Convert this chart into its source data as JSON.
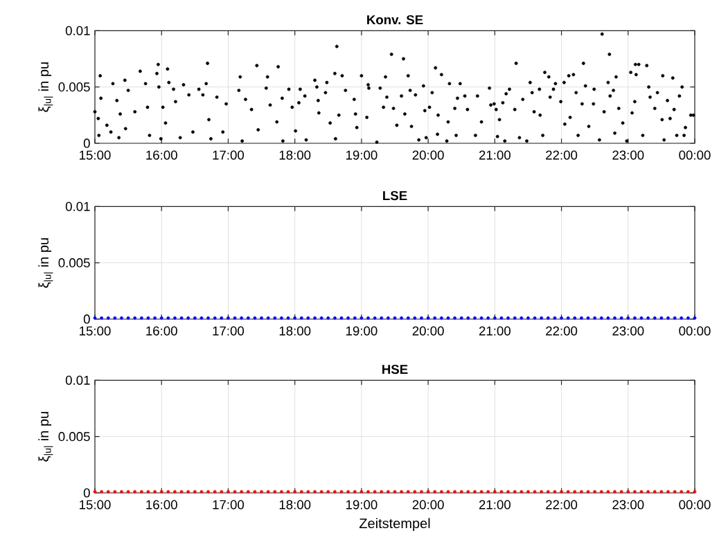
{
  "chart_data": [
    {
      "type": "scatter",
      "title": "Konv. SE",
      "ylabel": "ξ$_{|u|}$ in pu",
      "xlim": [
        15,
        24
      ],
      "ylim": [
        0,
        0.01
      ],
      "yticks": [
        0,
        0.005,
        0.01
      ],
      "grid": true,
      "marker": "circle",
      "color": "#000000",
      "xticks": [
        {
          "value": 15,
          "label": "15:00"
        },
        {
          "value": 16,
          "label": "16:00"
        },
        {
          "value": 17,
          "label": "17:00"
        },
        {
          "value": 18,
          "label": "18:00"
        },
        {
          "value": 19,
          "label": "19:00"
        },
        {
          "value": 20,
          "label": "20:00"
        },
        {
          "value": 21,
          "label": "21:00"
        },
        {
          "value": 22,
          "label": "22:00"
        },
        {
          "value": 23,
          "label": "23:00"
        },
        {
          "value": 24,
          "label": "00:00"
        }
      ],
      "x": [
        15.0,
        15.08,
        15.09,
        15.06,
        15.05,
        15.18,
        15.27,
        15.33,
        15.24,
        15.38,
        15.45,
        15.46,
        15.36,
        15.5,
        15.6,
        15.68,
        15.76,
        15.79,
        15.82,
        15.95,
        15.93,
        15.96,
        15.99,
        16.02,
        16.09,
        16.11,
        16.06,
        16.18,
        16.21,
        16.33,
        16.28,
        16.41,
        16.47,
        16.56,
        16.69,
        16.67,
        16.62,
        16.71,
        16.74,
        16.83,
        16.97,
        16.92,
        17.18,
        17.16,
        17.21,
        17.26,
        17.35,
        17.43,
        17.45,
        17.59,
        17.57,
        17.63,
        17.75,
        17.73,
        17.81,
        17.82,
        17.91,
        17.96,
        18.01,
        18.08,
        18.06,
        18.15,
        18.17,
        18.3,
        18.33,
        18.35,
        18.36,
        18.48,
        18.46,
        18.53,
        18.6,
        18.63,
        18.71,
        18.76,
        18.66,
        18.61,
        18.89,
        18.91,
        18.93,
        19.0,
        19.1,
        19.11,
        19.08,
        19.23,
        19.28,
        19.33,
        19.36,
        19.38,
        19.45,
        19.48,
        19.53,
        19.63,
        19.6,
        19.7,
        19.65,
        19.73,
        19.81,
        19.75,
        19.86,
        19.93,
        19.95,
        19.97,
        20.02,
        20.06,
        20.11,
        20.2,
        20.15,
        20.14,
        20.32,
        20.3,
        20.28,
        20.48,
        20.44,
        20.4,
        20.42,
        20.55,
        20.59,
        20.71,
        20.74,
        20.8,
        20.92,
        20.94,
        20.99,
        21.02,
        21.04,
        21.07,
        21.15,
        21.12,
        21.17,
        21.22,
        21.3,
        21.32,
        21.37,
        21.42,
        21.48,
        21.53,
        21.56,
        21.59,
        21.67,
        21.68,
        21.72,
        21.75,
        21.81,
        21.83,
        21.88,
        21.91,
        21.99,
        22.04,
        22.05,
        22.11,
        22.18,
        22.22,
        22.13,
        22.25,
        22.31,
        22.33,
        22.36,
        22.41,
        22.48,
        22.49,
        22.57,
        22.61,
        22.64,
        22.7,
        22.72,
        22.73,
        22.78,
        22.82,
        22.86,
        22.8,
        22.92,
        22.98,
        23.04,
        23.11,
        23.16,
        23.12,
        23.1,
        23.06,
        23.28,
        23.31,
        23.33,
        23.22,
        23.4,
        23.44,
        23.52,
        23.51,
        23.59,
        23.67,
        23.63,
        23.54,
        23.69,
        23.77,
        23.81,
        23.73,
        23.84,
        23.86,
        23.94,
        23.98
      ],
      "values": [
        0.0028,
        0.006,
        0.004,
        0.0007,
        0.0022,
        0.0016,
        0.0053,
        0.0038,
        0.001,
        0.0026,
        0.0056,
        0.0013,
        0.0005,
        0.0047,
        0.0028,
        0.0064,
        0.0053,
        0.0032,
        0.0007,
        0.007,
        0.0062,
        0.005,
        0.0004,
        0.0032,
        0.0066,
        0.0054,
        0.0018,
        0.0048,
        0.0037,
        0.0052,
        0.0005,
        0.0043,
        0.001,
        0.0048,
        0.0071,
        0.0053,
        0.0043,
        0.0021,
        0.0004,
        0.0041,
        0.0035,
        0.001,
        0.0059,
        0.0047,
        0.0002,
        0.0039,
        0.003,
        0.0069,
        0.0012,
        0.0059,
        0.0049,
        0.0034,
        0.0068,
        0.0019,
        0.004,
        0.0002,
        0.0048,
        0.0032,
        0.0011,
        0.0048,
        0.0036,
        0.0042,
        0.0003,
        0.0056,
        0.005,
        0.0038,
        0.0027,
        0.0054,
        0.0045,
        0.0018,
        0.0062,
        0.0086,
        0.006,
        0.0047,
        0.0025,
        0.0004,
        0.0039,
        0.0026,
        0.0014,
        0.006,
        0.0052,
        0.0049,
        0.0023,
        0.0001,
        0.0049,
        0.0032,
        0.0059,
        0.0041,
        0.0079,
        0.0031,
        0.0016,
        0.0075,
        0.0042,
        0.006,
        0.0026,
        0.0047,
        0.0043,
        0.0015,
        0.0003,
        0.0051,
        0.0029,
        0.0005,
        0.0032,
        0.0045,
        0.0067,
        0.0061,
        0.0025,
        0.0008,
        0.0053,
        0.0019,
        0.0002,
        0.0053,
        0.004,
        0.0031,
        0.0007,
        0.0042,
        0.003,
        0.0007,
        0.0042,
        0.0019,
        0.0049,
        0.0034,
        0.0035,
        0.003,
        0.0006,
        0.0021,
        0.0002,
        0.0036,
        0.0044,
        0.0048,
        0.003,
        0.0071,
        0.0005,
        0.0039,
        0.0002,
        0.0054,
        0.0045,
        0.0028,
        0.0048,
        0.0025,
        0.0007,
        0.0063,
        0.0059,
        0.0041,
        0.0048,
        0.0053,
        0.0037,
        0.0054,
        0.0017,
        0.006,
        0.0061,
        0.0045,
        0.0023,
        0.0007,
        0.0035,
        0.0071,
        0.0051,
        0.0015,
        0.0035,
        0.0048,
        0.0003,
        0.0097,
        0.0028,
        0.0054,
        0.0079,
        0.0042,
        0.0047,
        0.0059,
        0.0031,
        0.0009,
        0.0018,
        0.0002,
        0.0063,
        0.007,
        0.007,
        0.0061,
        0.0037,
        0.0027,
        0.0069,
        0.005,
        0.0041,
        0.0007,
        0.0031,
        0.0045,
        0.006,
        0.0021,
        0.0038,
        0.0058,
        0.0022,
        0.0003,
        0.003,
        0.0042,
        0.005,
        0.0007,
        0.0007,
        0.0014,
        0.0025,
        0.0025
      ]
    },
    {
      "type": "scatter",
      "title": "LSE",
      "ylabel": "ξ$_{|u|}$ in pu",
      "xlim": [
        15,
        24
      ],
      "ylim": [
        0,
        0.01
      ],
      "yticks": [
        0,
        0.005,
        0.01
      ],
      "grid": true,
      "marker": "circle",
      "color": "#0000ff",
      "xticks": [
        {
          "value": 15,
          "label": "15:00"
        },
        {
          "value": 16,
          "label": "16:00"
        },
        {
          "value": 17,
          "label": "17:00"
        },
        {
          "value": 18,
          "label": "18:00"
        },
        {
          "value": 19,
          "label": "19:00"
        },
        {
          "value": 20,
          "label": "20:00"
        },
        {
          "value": 21,
          "label": "21:00"
        },
        {
          "value": 22,
          "label": "22:00"
        },
        {
          "value": 23,
          "label": "23:00"
        },
        {
          "value": 24,
          "label": "00:00"
        }
      ],
      "x": [
        15.0,
        15.1,
        15.2,
        15.3,
        15.4,
        15.5,
        15.6,
        15.7,
        15.8,
        15.9,
        16.0,
        16.1,
        16.2,
        16.3,
        16.4,
        16.5,
        16.6,
        16.7,
        16.8,
        16.9,
        17.0,
        17.1,
        17.2,
        17.3,
        17.4,
        17.5,
        17.6,
        17.7,
        17.8,
        17.9,
        18.0,
        18.1,
        18.2,
        18.3,
        18.4,
        18.5,
        18.6,
        18.7,
        18.8,
        18.9,
        19.0,
        19.1,
        19.2,
        19.3,
        19.4,
        19.5,
        19.6,
        19.7,
        19.8,
        19.9,
        20.0,
        20.1,
        20.2,
        20.3,
        20.4,
        20.5,
        20.6,
        20.7,
        20.8,
        20.9,
        21.0,
        21.1,
        21.2,
        21.3,
        21.4,
        21.5,
        21.6,
        21.7,
        21.8,
        21.9,
        22.0,
        22.1,
        22.2,
        22.3,
        22.4,
        22.5,
        22.6,
        22.7,
        22.8,
        22.9,
        23.0,
        23.1,
        23.2,
        23.3,
        23.4,
        23.5,
        23.6,
        23.7,
        23.8,
        23.9,
        24.0
      ],
      "values": [
        0.0001,
        0.0001,
        0.0001,
        0.0001,
        0.0001,
        0.0001,
        0.0001,
        0.0001,
        0.0001,
        0.0001,
        0.0001,
        0.0001,
        0.0001,
        0.0001,
        0.0001,
        0.0001,
        0.0001,
        0.0001,
        0.0001,
        0.0001,
        0.0001,
        0.0001,
        0.0001,
        0.0001,
        0.0001,
        0.0001,
        0.0001,
        0.0001,
        0.0001,
        0.0001,
        0.0001,
        0.0001,
        0.0001,
        0.0001,
        0.0001,
        0.0001,
        0.0001,
        0.0001,
        0.0001,
        0.0001,
        0.0001,
        0.0001,
        0.0001,
        0.0001,
        0.0001,
        0.0001,
        0.0001,
        0.0001,
        0.0001,
        0.0001,
        0.0001,
        0.0001,
        0.0001,
        0.0001,
        0.0001,
        0.0001,
        0.0001,
        0.0001,
        0.0001,
        0.0001,
        0.0001,
        0.0001,
        0.0001,
        0.0001,
        0.0001,
        0.0001,
        0.0001,
        0.0001,
        0.0001,
        0.0001,
        0.0001,
        0.0001,
        0.0001,
        0.0001,
        0.0001,
        0.0001,
        0.0001,
        0.0001,
        0.0001,
        0.0001,
        0.0001,
        0.0001,
        0.0001,
        0.0001,
        0.0001,
        0.0001,
        0.0001,
        0.0001,
        0.0001,
        0.0001,
        0.0001
      ]
    },
    {
      "type": "scatter",
      "title": "HSE",
      "ylabel": "ξ$_{|u|}$ in pu",
      "xlabel": "Zeitstempel",
      "xlim": [
        15,
        24
      ],
      "ylim": [
        0,
        0.01
      ],
      "yticks": [
        0,
        0.005,
        0.01
      ],
      "grid": true,
      "marker": "circle",
      "color": "#ff0000",
      "xticks": [
        {
          "value": 15,
          "label": "15:00"
        },
        {
          "value": 16,
          "label": "16:00"
        },
        {
          "value": 17,
          "label": "17:00"
        },
        {
          "value": 18,
          "label": "18:00"
        },
        {
          "value": 19,
          "label": "19:00"
        },
        {
          "value": 20,
          "label": "20:00"
        },
        {
          "value": 21,
          "label": "21:00"
        },
        {
          "value": 22,
          "label": "22:00"
        },
        {
          "value": 23,
          "label": "23:00"
        },
        {
          "value": 24,
          "label": "00:00"
        }
      ],
      "x": [
        15.0,
        15.1,
        15.2,
        15.3,
        15.4,
        15.5,
        15.6,
        15.7,
        15.8,
        15.9,
        16.0,
        16.1,
        16.2,
        16.3,
        16.4,
        16.5,
        16.6,
        16.7,
        16.8,
        16.9,
        17.0,
        17.1,
        17.2,
        17.3,
        17.4,
        17.5,
        17.6,
        17.7,
        17.8,
        17.9,
        18.0,
        18.1,
        18.2,
        18.3,
        18.4,
        18.5,
        18.6,
        18.7,
        18.8,
        18.9,
        19.0,
        19.1,
        19.2,
        19.3,
        19.4,
        19.5,
        19.6,
        19.7,
        19.8,
        19.9,
        20.0,
        20.1,
        20.2,
        20.3,
        20.4,
        20.5,
        20.6,
        20.7,
        20.8,
        20.9,
        21.0,
        21.1,
        21.2,
        21.3,
        21.4,
        21.5,
        21.6,
        21.7,
        21.8,
        21.9,
        22.0,
        22.1,
        22.2,
        22.3,
        22.4,
        22.5,
        22.6,
        22.7,
        22.8,
        22.9,
        23.0,
        23.1,
        23.2,
        23.3,
        23.4,
        23.5,
        23.6,
        23.7,
        23.8,
        23.9,
        24.0
      ],
      "values": [
        0.0001,
        0.0001,
        0.0001,
        0.0001,
        0.0001,
        0.0001,
        0.0001,
        0.0001,
        0.0001,
        0.0001,
        0.0001,
        0.0001,
        0.0001,
        0.0001,
        0.0001,
        0.0001,
        0.0001,
        0.0001,
        0.0001,
        0.0001,
        0.0001,
        0.0001,
        0.0001,
        0.0001,
        0.0001,
        0.0001,
        0.0001,
        0.0001,
        0.0001,
        0.0001,
        0.0001,
        0.0001,
        0.0001,
        0.0001,
        0.0001,
        0.0001,
        0.0001,
        0.0001,
        0.0001,
        0.0001,
        0.0001,
        0.0001,
        0.0001,
        0.0001,
        0.0001,
        0.0001,
        0.0001,
        0.0001,
        0.0001,
        0.0001,
        0.0001,
        0.0001,
        0.0001,
        0.0001,
        0.0001,
        0.0001,
        0.0001,
        0.0001,
        0.0001,
        0.0001,
        0.0001,
        0.0001,
        0.0001,
        0.0001,
        0.0001,
        0.0001,
        0.0001,
        0.0001,
        0.0001,
        0.0001,
        0.0001,
        0.0001,
        0.0001,
        0.0001,
        0.0001,
        0.0001,
        0.0001,
        0.0001,
        0.0001,
        0.0001,
        0.0001,
        0.0001,
        0.0001,
        0.0001,
        0.0001,
        0.0001,
        0.0001,
        0.0001,
        0.0001,
        0.0001,
        0.0001
      ]
    }
  ]
}
